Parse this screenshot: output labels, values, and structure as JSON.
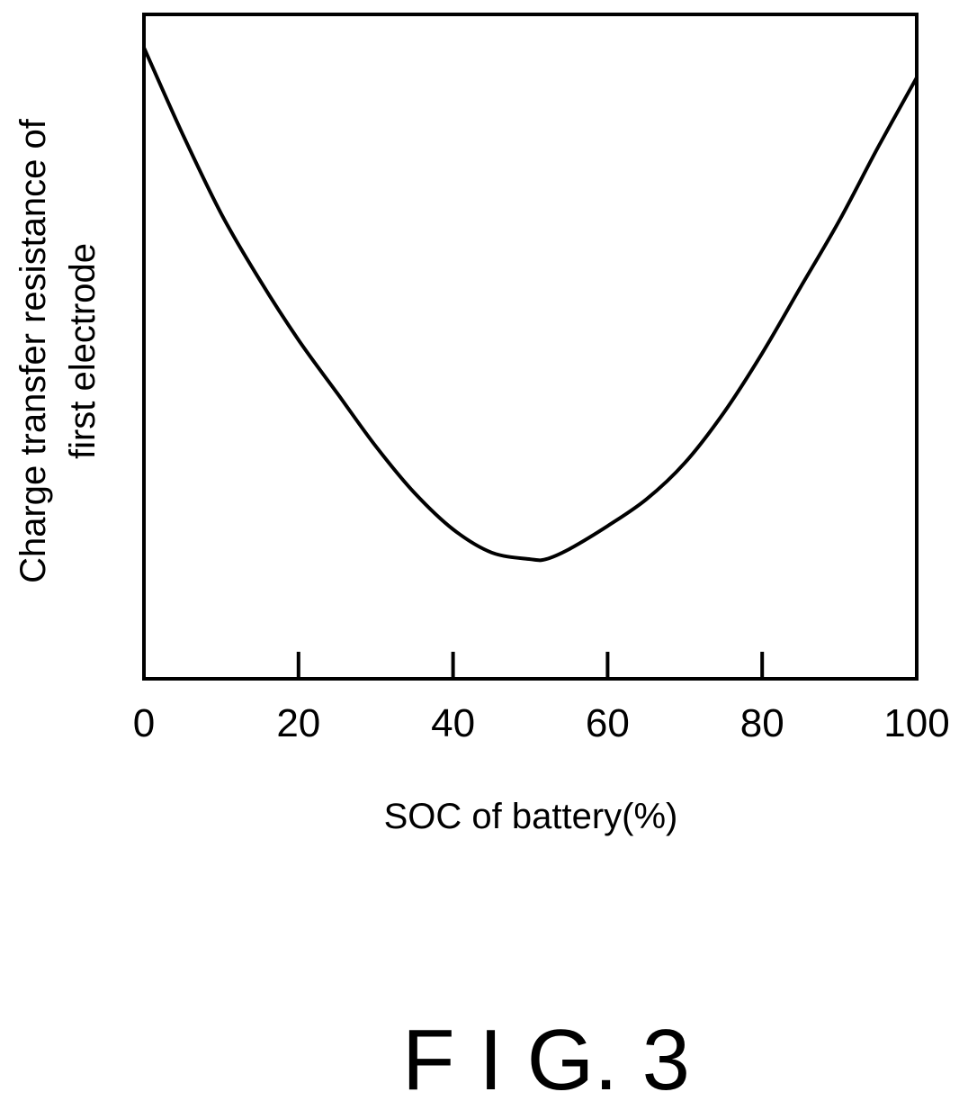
{
  "chart_data": {
    "type": "line",
    "xlabel": "SOC of battery(%)",
    "ylabel_lines": [
      "Charge transfer resistance of",
      "first electrode"
    ],
    "xlim": [
      0,
      100
    ],
    "ylim": [
      0,
      100
    ],
    "x_ticks": [
      0,
      20,
      40,
      60,
      80,
      100
    ],
    "y_ticks": [],
    "grid": false,
    "legend": "none",
    "series": [
      {
        "x": [
          0,
          5,
          10,
          15,
          20,
          25,
          30,
          35,
          40,
          45,
          50,
          52,
          55,
          60,
          65,
          70,
          75,
          80,
          85,
          90,
          95,
          100
        ],
        "y": [
          95,
          82,
          70,
          60,
          51,
          43,
          35,
          28,
          22.5,
          19,
          18,
          18,
          19.5,
          23,
          27,
          32.5,
          40,
          49,
          59,
          69,
          80,
          90.5
        ]
      }
    ]
  },
  "caption": "F I G. 3",
  "colors": {
    "line": "#000000",
    "background": "#ffffff"
  }
}
